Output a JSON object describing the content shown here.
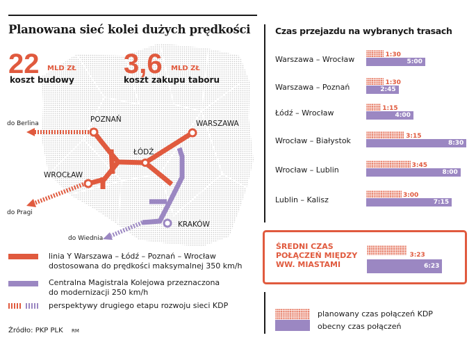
{
  "title": "Planowana sieć kolei dużych prędkości",
  "costs": [
    {
      "value": "22",
      "unit": "MLD ZŁ",
      "label": "koszt budowy"
    },
    {
      "value": "3,6",
      "unit": "MLD ZŁ",
      "label": "koszt zakupu taboru"
    }
  ],
  "map": {
    "cities": [
      "POZNAŃ",
      "WARSZAWA",
      "ŁÓDŹ",
      "WROCŁAW",
      "KRAKÓW"
    ],
    "directions": [
      "do Berlina",
      "do Pragi",
      "do Wiednia"
    ]
  },
  "legend_left": [
    {
      "text1": "linia Y Warszawa – Łódź – Poznań – Wrocław",
      "text2": "dostosowana do prędkości maksymalnej 350 km/h"
    },
    {
      "text1": "Centralna Magistrala Kolejowa przeznaczona",
      "text2": "do modernizacji 250 km/h"
    },
    {
      "text1": "perspektywy drugiego etapu rozwoju sieci KDP"
    }
  ],
  "source": "Źródło: PKP PLK",
  "author": "RM",
  "colors": {
    "red": "#e05a3e",
    "purple": "#9b87c2"
  },
  "chart_data": {
    "type": "bar",
    "title": "Czas przejazdu na wybranych trasach",
    "categories": [
      "Warszawa – Wrocław",
      "Warszawa – Poznań",
      "Łódź – Wrocław",
      "Wrocław – Białystok",
      "Wrocław – Lublin",
      "Lublin – Kalisz"
    ],
    "series": [
      {
        "name": "planowany czas połączeń KDP",
        "labels": [
          "1:30",
          "1:30",
          "1:15",
          "3:15",
          "3:45",
          "3:00"
        ],
        "values_min": [
          90,
          90,
          75,
          195,
          225,
          180
        ]
      },
      {
        "name": "obecny czas połączeń",
        "labels": [
          "5:00",
          "2:45",
          "4:00",
          "8:30",
          "8:00",
          "7:15"
        ],
        "values_min": [
          300,
          165,
          240,
          510,
          480,
          435
        ]
      }
    ],
    "average": {
      "title": "ŚREDNI CZAS POŁĄCZEŃ MIĘDZY WW. MIASTAMI",
      "planned": "3:23",
      "planned_min": 203,
      "current": "6:23",
      "current_min": 383
    }
  }
}
